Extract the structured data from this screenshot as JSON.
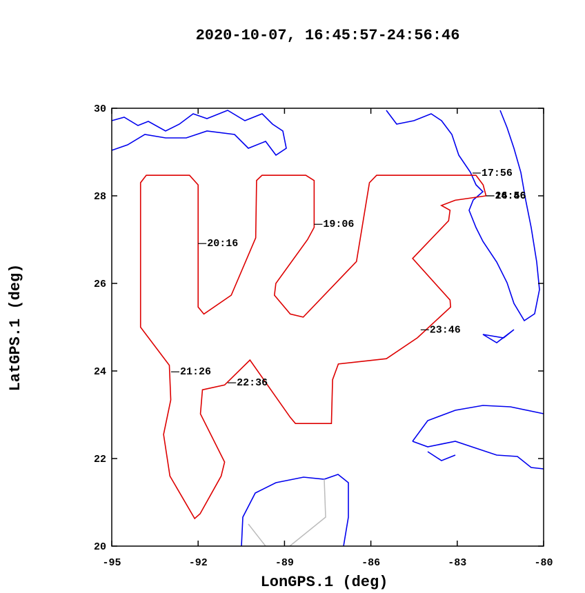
{
  "chart_data": {
    "type": "line",
    "title": "2020-10-07, 16:45:57-24:56:46",
    "x_label": "LonGPS.1 (deg)",
    "y_label": "LatGPS.1 (deg)",
    "xlim": [
      -95,
      -80
    ],
    "ylim": [
      20,
      30
    ],
    "xticks": [
      -95,
      -92,
      -89,
      -86,
      -83,
      -80
    ],
    "yticks": [
      20,
      22,
      24,
      26,
      28,
      30
    ],
    "series": [
      {
        "color": "#dd0000",
        "x": [
          -82.0,
          -82.1,
          -82.35,
          -85.8,
          -86.05,
          -86.5,
          -88.35,
          -88.8,
          -89.35,
          -89.3,
          -88.2,
          -87.97,
          -87.97,
          -88.26,
          -89.78,
          -89.97,
          -90.0,
          -90.85,
          -91.8,
          -92.0,
          -92.0,
          -92.3,
          -93.8,
          -94.0,
          -94.0,
          -93.0,
          -92.95,
          -93.2,
          -92.98,
          -92.12,
          -91.93,
          -91.2,
          -91.08,
          -91.92,
          -91.85,
          -91.08,
          -90.2,
          -88.8,
          -88.62,
          -87.37,
          -87.33,
          -87.13,
          -85.46,
          -84.38,
          -83.23,
          -83.25,
          -84.55,
          -83.3,
          -83.25,
          -83.55,
          -83.07,
          -82.0
        ],
        "values": [
          28.0,
          28.25,
          28.47,
          28.47,
          28.3,
          26.5,
          25.23,
          25.3,
          25.73,
          26.0,
          27.0,
          27.28,
          28.35,
          28.47,
          28.47,
          28.35,
          27.04,
          25.73,
          25.3,
          25.46,
          28.25,
          28.47,
          28.47,
          28.3,
          25.0,
          24.13,
          23.34,
          22.55,
          21.6,
          20.63,
          20.74,
          21.6,
          21.92,
          23.02,
          23.57,
          23.68,
          24.25,
          22.94,
          22.8,
          22.8,
          23.8,
          24.16,
          24.28,
          24.76,
          25.46,
          25.62,
          26.57,
          27.43,
          27.67,
          27.78,
          27.9,
          28.0
        ]
      }
    ],
    "annotations": [
      {
        "text": "17:56",
        "x": -82.47,
        "y": 28.52
      },
      {
        "text": "19:06",
        "x": -87.97,
        "y": 27.35
      },
      {
        "text": "20:16",
        "x": -92.0,
        "y": 26.91
      },
      {
        "text": "21:26",
        "x": -92.94,
        "y": 23.98
      },
      {
        "text": "22:36",
        "x": -90.97,
        "y": 23.73
      },
      {
        "text": "23:46",
        "x": -84.27,
        "y": 24.94
      },
      {
        "text": "16:46",
        "x": -82.0,
        "y": 28.0
      },
      {
        "text": "24:56",
        "x": -82.0,
        "y": 28.0
      }
    ]
  }
}
